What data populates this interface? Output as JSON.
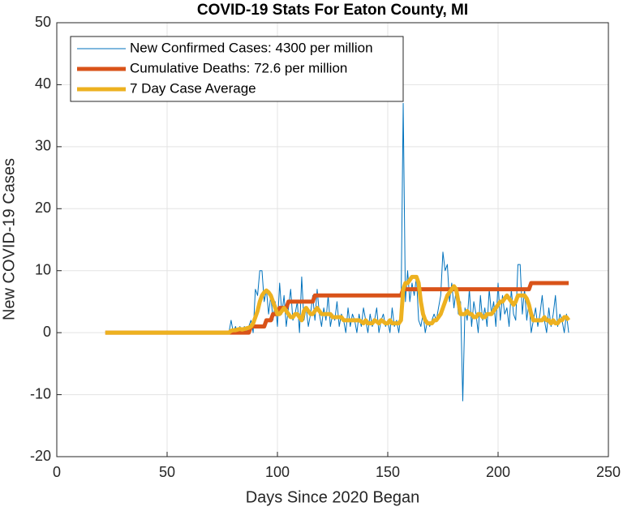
{
  "chart_data": {
    "type": "line",
    "title": "COVID-19 Stats For Eaton County, MI",
    "x_label": "Days Since 2020 Began",
    "y_label": "New COVID-19 Cases",
    "xlim": [
      0,
      250
    ],
    "xticks": [
      0,
      50,
      100,
      150,
      200,
      250
    ],
    "ylim": [
      -20,
      50
    ],
    "yticks": [
      -20,
      -10,
      0,
      10,
      20,
      30,
      40,
      50
    ],
    "grid": true,
    "legend_position": "upper-left",
    "x": [
      22,
      23,
      24,
      25,
      26,
      27,
      28,
      29,
      30,
      31,
      32,
      33,
      34,
      35,
      36,
      37,
      38,
      39,
      40,
      41,
      42,
      43,
      44,
      45,
      46,
      47,
      48,
      49,
      50,
      51,
      52,
      53,
      54,
      55,
      56,
      57,
      58,
      59,
      60,
      61,
      62,
      63,
      64,
      65,
      66,
      67,
      68,
      69,
      70,
      71,
      72,
      73,
      74,
      75,
      76,
      77,
      78,
      79,
      80,
      81,
      82,
      83,
      84,
      85,
      86,
      87,
      88,
      89,
      90,
      91,
      92,
      93,
      94,
      95,
      96,
      97,
      98,
      99,
      100,
      101,
      102,
      103,
      104,
      105,
      106,
      107,
      108,
      109,
      110,
      111,
      112,
      113,
      114,
      115,
      116,
      117,
      118,
      119,
      120,
      121,
      122,
      123,
      124,
      125,
      126,
      127,
      128,
      129,
      130,
      131,
      132,
      133,
      134,
      135,
      136,
      137,
      138,
      139,
      140,
      141,
      142,
      143,
      144,
      145,
      146,
      147,
      148,
      149,
      150,
      151,
      152,
      153,
      154,
      155,
      156,
      157,
      158,
      159,
      160,
      161,
      162,
      163,
      164,
      165,
      166,
      167,
      168,
      169,
      170,
      171,
      172,
      173,
      174,
      175,
      176,
      177,
      178,
      179,
      180,
      181,
      182,
      183,
      184,
      185,
      186,
      187,
      188,
      189,
      190,
      191,
      192,
      193,
      194,
      195,
      196,
      197,
      198,
      199,
      200,
      201,
      202,
      203,
      204,
      205,
      206,
      207,
      208,
      209,
      210,
      211,
      212,
      213,
      214,
      215,
      216,
      217,
      218,
      219,
      220,
      221,
      222,
      223,
      224,
      225,
      226,
      227,
      228,
      229,
      230,
      231,
      232
    ],
    "series": [
      {
        "name": "New Confirmed Cases: 4300 per million",
        "color": "#0072BD",
        "width": 1,
        "values": [
          0,
          0,
          0,
          0,
          0,
          0,
          0,
          0,
          0,
          0,
          0,
          0,
          0,
          0,
          0,
          0,
          0,
          0,
          0,
          0,
          0,
          0,
          0,
          0,
          0,
          0,
          0,
          0,
          0,
          0,
          0,
          0,
          0,
          0,
          0,
          0,
          0,
          0,
          0,
          0,
          0,
          0,
          0,
          0,
          0,
          0,
          0,
          0,
          0,
          0,
          0,
          0,
          0,
          0,
          0,
          0,
          0,
          2,
          0,
          1,
          0,
          1,
          0,
          1,
          0,
          1,
          2,
          0,
          7,
          6,
          10,
          10,
          5,
          7,
          3,
          6,
          2,
          5,
          1,
          8,
          3,
          6,
          1,
          4,
          7,
          2,
          3,
          5,
          0,
          9,
          2,
          4,
          1,
          3,
          6,
          2,
          7,
          3,
          1,
          4,
          2,
          6,
          1,
          3,
          2,
          5,
          1,
          3,
          2,
          0,
          4,
          1,
          3,
          2,
          0,
          3,
          1,
          4,
          2,
          0,
          3,
          1,
          2,
          4,
          0,
          2,
          3,
          1,
          2,
          0,
          4,
          1,
          2,
          0,
          3,
          37,
          5,
          10,
          5,
          8,
          6,
          9,
          2,
          1,
          3,
          0,
          2,
          1,
          2,
          3,
          2,
          4,
          6,
          13,
          10,
          11,
          5,
          8,
          4,
          7,
          3,
          5,
          -11,
          4,
          2,
          7,
          1,
          5,
          3,
          0,
          6,
          2,
          4,
          1,
          7,
          3,
          5,
          1,
          8,
          2,
          6,
          3,
          4,
          1,
          7,
          3,
          2,
          11,
          11,
          3,
          7,
          2,
          5,
          0,
          2,
          4,
          1,
          3,
          6,
          2,
          0,
          4,
          1,
          3,
          6,
          1,
          3,
          2,
          0,
          3,
          0
        ]
      },
      {
        "name": "Cumulative Deaths: 72.6 per million",
        "color": "#D95319",
        "width": 5,
        "values": [
          0,
          0,
          0,
          0,
          0,
          0,
          0,
          0,
          0,
          0,
          0,
          0,
          0,
          0,
          0,
          0,
          0,
          0,
          0,
          0,
          0,
          0,
          0,
          0,
          0,
          0,
          0,
          0,
          0,
          0,
          0,
          0,
          0,
          0,
          0,
          0,
          0,
          0,
          0,
          0,
          0,
          0,
          0,
          0,
          0,
          0,
          0,
          0,
          0,
          0,
          0,
          0,
          0,
          0,
          0,
          0,
          0,
          0,
          0,
          0,
          0,
          0,
          0,
          0,
          0,
          0,
          1,
          1,
          1,
          1,
          1,
          1,
          1,
          2,
          2,
          2,
          3,
          3,
          3,
          4,
          4,
          4,
          4,
          5,
          5,
          5,
          5,
          5,
          5,
          5,
          5,
          5,
          5,
          5,
          5,
          6,
          6,
          6,
          6,
          6,
          6,
          6,
          6,
          6,
          6,
          6,
          6,
          6,
          6,
          6,
          6,
          6,
          6,
          6,
          6,
          6,
          6,
          6,
          6,
          6,
          6,
          6,
          6,
          6,
          6,
          6,
          6,
          6,
          6,
          6,
          6,
          6,
          6,
          6,
          6,
          7,
          7,
          7,
          7,
          7,
          7,
          7,
          7,
          7,
          7,
          7,
          7,
          7,
          7,
          7,
          7,
          7,
          7,
          7,
          7,
          7,
          7,
          7,
          7,
          7,
          7,
          7,
          7,
          7,
          7,
          7,
          7,
          7,
          7,
          7,
          7,
          7,
          7,
          7,
          7,
          7,
          7,
          7,
          7,
          7,
          7,
          7,
          7,
          7,
          7,
          7,
          7,
          7,
          7,
          7,
          7,
          7,
          7,
          8,
          8,
          8,
          8,
          8,
          8,
          8,
          8,
          8,
          8,
          8,
          8,
          8,
          8,
          8,
          8,
          8,
          8
        ]
      },
      {
        "name": "7 Day Case Average",
        "color": "#EDB120",
        "width": 5,
        "values": [
          0,
          0,
          0,
          0,
          0,
          0,
          0,
          0,
          0,
          0,
          0,
          0,
          0,
          0,
          0,
          0,
          0,
          0,
          0,
          0,
          0,
          0,
          0,
          0,
          0,
          0,
          0,
          0,
          0,
          0,
          0,
          0,
          0,
          0,
          0,
          0,
          0,
          0,
          0,
          0,
          0,
          0,
          0,
          0,
          0,
          0,
          0,
          0,
          0,
          0,
          0,
          0,
          0,
          0,
          0,
          0,
          0,
          0.3,
          0.4,
          0.4,
          0.5,
          0.6,
          0.5,
          0.6,
          0.7,
          0.8,
          1,
          1.5,
          2.5,
          3.5,
          5,
          6,
          6.5,
          6.8,
          6.5,
          6,
          5,
          4,
          3,
          3,
          3.5,
          4,
          3.5,
          3,
          2.5,
          2.5,
          3,
          3,
          2.5,
          2,
          3.5,
          4,
          3.5,
          3,
          3,
          3.5,
          4,
          3.5,
          3,
          3,
          3,
          3,
          3,
          2.5,
          2.5,
          2.5,
          2.5,
          2.5,
          2,
          2,
          2,
          2,
          2,
          2,
          2,
          2,
          1.8,
          1.5,
          2,
          1.5,
          1.5,
          1.5,
          2,
          1.8,
          1.5,
          2,
          1.8,
          1.5,
          1.5,
          2,
          1.5,
          1.5,
          1.5,
          1.5,
          2,
          7,
          8,
          8,
          8.5,
          9,
          9,
          9,
          8,
          5,
          3,
          2,
          1.5,
          1.5,
          1.5,
          2,
          2,
          2.5,
          3,
          4,
          5,
          6,
          6.5,
          7,
          7.5,
          7,
          5,
          3,
          3,
          3,
          3.5,
          3,
          3,
          2.5,
          2.5,
          3,
          3,
          2.5,
          2.5,
          3,
          3,
          3,
          3.5,
          4,
          4.5,
          5,
          5,
          5.5,
          6,
          5.5,
          5,
          4.5,
          5,
          6,
          6,
          6,
          6,
          5.5,
          4.5,
          3,
          2,
          2,
          2,
          2,
          2,
          2.5,
          2,
          2,
          1.5,
          2,
          1.5,
          1.5,
          2,
          2,
          2.5,
          2.5,
          2
        ]
      }
    ]
  }
}
